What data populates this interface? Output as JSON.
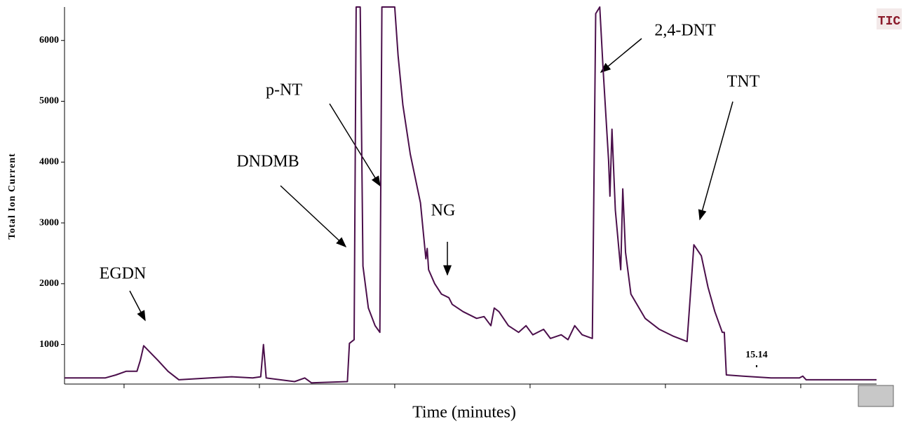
{
  "chart_data": {
    "type": "line",
    "y_label": "Total Ion Current",
    "x_label": "Time (minutes)",
    "badge": "TIC",
    "retention_time_label": 15.14,
    "xlim": [
      5.12,
      17.12
    ],
    "xticks": [
      6,
      8,
      10,
      12,
      14,
      16
    ],
    "ylim": [
      350,
      6550
    ],
    "yticks": [
      1000,
      2000,
      3000,
      4000,
      5000,
      6000
    ],
    "annotations": [
      "EGDN",
      "DNDMB",
      "p-NT",
      "NG",
      "2,4-DNT",
      "TNT"
    ],
    "series": [
      {
        "name": "TIC",
        "color": "#4b0f4b",
        "x": [
          5.12,
          5.72,
          5.88,
          6.03,
          6.19,
          6.24,
          6.29,
          6.36,
          6.5,
          6.65,
          6.81,
          7.27,
          7.59,
          7.9,
          8.02,
          8.06,
          8.1,
          8.52,
          8.67,
          8.77,
          9.3,
          9.33,
          9.4,
          9.43,
          9.49,
          9.53,
          9.61,
          9.71,
          9.78,
          9.81,
          10.0,
          10.05,
          10.12,
          10.23,
          10.38,
          10.46,
          10.48,
          10.5,
          10.59,
          10.69,
          10.8,
          10.85,
          11.01,
          11.21,
          11.32,
          11.42,
          11.47,
          11.54,
          11.68,
          11.83,
          11.94,
          12.04,
          12.2,
          12.3,
          12.46,
          12.56,
          12.66,
          12.77,
          12.92,
          12.97,
          13.03,
          13.08,
          13.16,
          13.18,
          13.21,
          13.26,
          13.34,
          13.37,
          13.41,
          13.49,
          13.7,
          13.91,
          14.11,
          14.32,
          14.37,
          14.42,
          14.53,
          14.63,
          14.73,
          14.84,
          14.87,
          14.9,
          15.15,
          15.56,
          15.98,
          16.03,
          16.08,
          17.12
        ],
        "values": [
          450,
          450,
          500,
          560,
          560,
          740,
          980,
          900,
          740,
          560,
          420,
          450,
          470,
          450,
          470,
          1000,
          450,
          390,
          450,
          370,
          390,
          1020,
          1080,
          6550,
          6550,
          2290,
          1600,
          1310,
          1200,
          6550,
          6550,
          5750,
          4940,
          4130,
          3330,
          2410,
          2580,
          2230,
          2000,
          1830,
          1770,
          1660,
          1540,
          1430,
          1460,
          1310,
          1600,
          1540,
          1310,
          1200,
          1310,
          1160,
          1250,
          1100,
          1160,
          1080,
          1310,
          1160,
          1100,
          6440,
          6550,
          5520,
          4020,
          3440,
          4540,
          3210,
          2230,
          3560,
          2520,
          1830,
          1430,
          1250,
          1140,
          1050,
          1830,
          2640,
          2460,
          1940,
          1540,
          1200,
          1200,
          500,
          480,
          450,
          450,
          480,
          420,
          420
        ]
      }
    ]
  }
}
